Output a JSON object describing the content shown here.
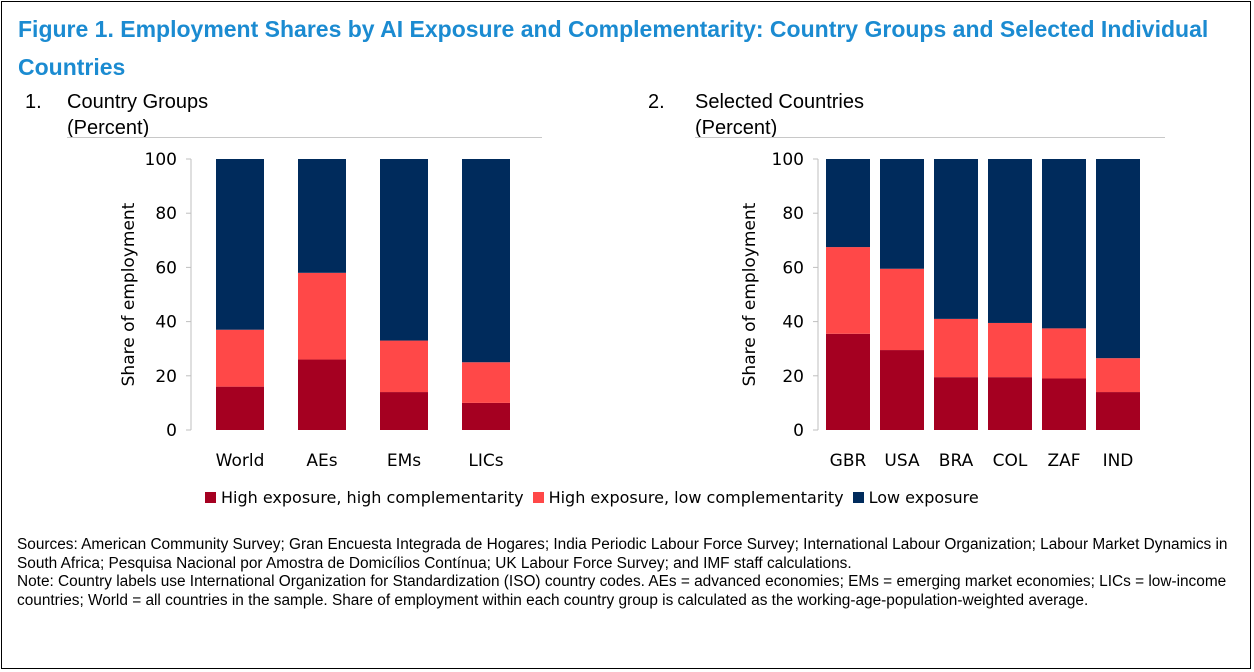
{
  "figure": {
    "title": "Figure 1.  Employment Shares by AI Exposure and Complementarity: Country Groups and Selected Individual Countries"
  },
  "panels": [
    {
      "number": "1.",
      "title": "Country Groups",
      "unit": "(Percent)"
    },
    {
      "number": "2.",
      "title": "Selected Countries",
      "unit": "(Percent)"
    }
  ],
  "legend": {
    "items": [
      {
        "label": "High exposure, high complementarity",
        "color": "#a50021"
      },
      {
        "label": "High exposure, low complementarity",
        "color": "#ff4848"
      },
      {
        "label": "Low exposure",
        "color": "#002b5c"
      }
    ]
  },
  "notes": {
    "sources": "Sources: American Community Survey; Gran Encuesta Integrada de Hogares; India Periodic Labour Force Survey; International Labour Organization; Labour Market Dynamics in South Africa; Pesquisa Nacional por Amostra de Domicílios Contínua; UK Labour Force Survey; and IMF staff calculations.",
    "note": "Note: Country labels use International Organization for Standardization (ISO) country codes. AEs = advanced economies; EMs = emerging market economies; LICs = low-income countries; World = all countries in the sample. Share of employment within each country group is calculated as the working-age-population-weighted average."
  },
  "chart_data": [
    {
      "type": "bar",
      "stacked": true,
      "categories": [
        "World",
        "AEs",
        "EMs",
        "LICs"
      ],
      "series": [
        {
          "name": "High exposure, high complementarity",
          "values": [
            16,
            26,
            14,
            10
          ],
          "color": "#a50021"
        },
        {
          "name": "High exposure, low complementarity",
          "values": [
            21,
            32,
            19,
            15
          ],
          "color": "#ff4848"
        },
        {
          "name": "Low exposure",
          "values": [
            63,
            42,
            67,
            75
          ],
          "color": "#002b5c"
        }
      ],
      "ylabel": "Share of employment",
      "ylim": [
        0,
        100
      ],
      "yticks": [
        0,
        20,
        40,
        60,
        80,
        100
      ],
      "grid": false
    },
    {
      "type": "bar",
      "stacked": true,
      "categories": [
        "GBR",
        "USA",
        "BRA",
        "COL",
        "ZAF",
        "IND"
      ],
      "series": [
        {
          "name": "High exposure, high complementarity",
          "values": [
            35.5,
            29.5,
            19.5,
            19.5,
            19,
            14
          ],
          "color": "#a50021"
        },
        {
          "name": "High exposure, low complementarity",
          "values": [
            32,
            30,
            21.5,
            20,
            18.5,
            12.5
          ],
          "color": "#ff4848"
        },
        {
          "name": "Low exposure",
          "values": [
            32.5,
            40.5,
            59,
            60.5,
            62.5,
            73.5
          ],
          "color": "#002b5c"
        }
      ],
      "ylabel": "Share of employment",
      "ylim": [
        0,
        100
      ],
      "yticks": [
        0,
        20,
        40,
        60,
        80,
        100
      ],
      "grid": false
    }
  ]
}
